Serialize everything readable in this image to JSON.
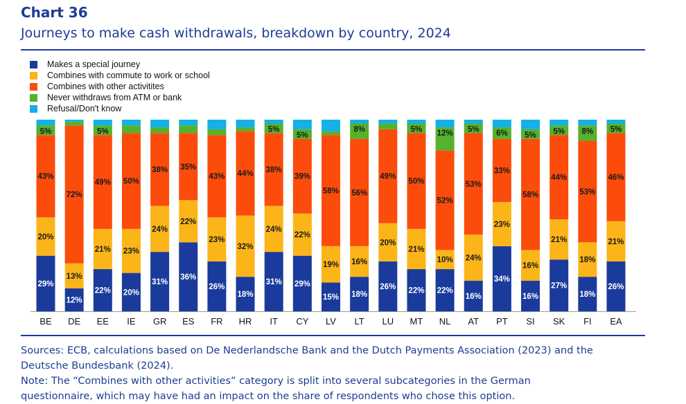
{
  "header": {
    "chart_number": "Chart 36",
    "title": "Journeys to make cash withdrawals, breakdown by country, 2024"
  },
  "colors": {
    "accent": "#1c3c94",
    "special": "#1a3b9c",
    "commute": "#fbb519",
    "other": "#fb4c0c",
    "never": "#54b22d",
    "refusal": "#14b0e6"
  },
  "chart_data": {
    "type": "bar",
    "stacked": true,
    "normalized_percent": true,
    "categories": [
      "BE",
      "DE",
      "EE",
      "IE",
      "GR",
      "ES",
      "FR",
      "HR",
      "IT",
      "CY",
      "LV",
      "LT",
      "LU",
      "MT",
      "NL",
      "AT",
      "PT",
      "SI",
      "SK",
      "FI",
      "EA"
    ],
    "series": [
      {
        "name": "Makes a special journey",
        "color": "#1a3b9c",
        "values": [
          29,
          12,
          22,
          20,
          31,
          36,
          26,
          18,
          31,
          29,
          15,
          18,
          26,
          22,
          22,
          16,
          34,
          16,
          27,
          18,
          26
        ],
        "labels": [
          "29%",
          "12%",
          "22%",
          "20%",
          "31%",
          "36%",
          "26%",
          "18%",
          "31%",
          "29%",
          "15%",
          "18%",
          "26%",
          "22%",
          "22%",
          "16%",
          "34%",
          "16%",
          "27%",
          "18%",
          "26%"
        ]
      },
      {
        "name": "Combines with commute to work or school",
        "color": "#fbb519",
        "values": [
          20,
          13,
          21,
          23,
          24,
          22,
          23,
          32,
          24,
          22,
          19,
          16,
          20,
          21,
          10,
          24,
          23,
          16,
          21,
          18,
          21
        ],
        "labels": [
          "20%",
          "13%",
          "21%",
          "23%",
          "24%",
          "22%",
          "23%",
          "32%",
          "24%",
          "22%",
          "19%",
          "16%",
          "20%",
          "21%",
          "10%",
          "24%",
          "23%",
          "16%",
          "21%",
          "18%",
          "21%"
        ]
      },
      {
        "name": "Combines with other activitites",
        "color": "#fb4c0c",
        "values": [
          43,
          72,
          49,
          50,
          38,
          35,
          43,
          44,
          38,
          39,
          58,
          56,
          49,
          50,
          52,
          53,
          33,
          58,
          44,
          53,
          46
        ],
        "labels": [
          "43%",
          "72%",
          "49%",
          "50%",
          "38%",
          "35%",
          "43%",
          "44%",
          "38%",
          "39%",
          "58%",
          "56%",
          "49%",
          "50%",
          "52%",
          "53%",
          "33%",
          "58%",
          "44%",
          "53%",
          "46%"
        ]
      },
      {
        "name": "Never withdraws from ATM or bank",
        "color": "#54b22d",
        "values": [
          5,
          2,
          5,
          4,
          3,
          4,
          3,
          2,
          5,
          5,
          2,
          8,
          3,
          5,
          12,
          5,
          6,
          5,
          5,
          8,
          5
        ],
        "labels": [
          "5%",
          "",
          "5%",
          "",
          "",
          "",
          "",
          "",
          "5%",
          "5%",
          "",
          "8%",
          "",
          "5%",
          "12%",
          "5%",
          "6%",
          "5%",
          "5%",
          "8%",
          "5%"
        ]
      },
      {
        "name": "Refusal/Don't know",
        "color": "#14b0e6",
        "values": [
          3,
          1,
          3,
          3,
          4,
          3,
          5,
          4,
          2,
          5,
          6,
          2,
          2,
          2,
          4,
          2,
          4,
          5,
          3,
          3,
          2
        ],
        "labels": [
          "",
          "",
          "",
          "",
          "",
          "",
          "",
          "",
          "",
          "",
          "",
          "",
          "",
          "",
          "",
          "",
          "",
          "",
          "",
          "",
          ""
        ]
      }
    ],
    "ylim": [
      0,
      100
    ],
    "legend_position": "top-left",
    "grid": false
  },
  "footer": {
    "sources_line1": "Sources: ECB, calculations based on De Nederlandsche Bank and the Dutch Payments Association (2023) and the",
    "sources_line2": "Deutsche Bundesbank (2024).",
    "note_line1": "Note: The “Combines with other activities” category is split into several subcategories in the German",
    "note_line2": "questionnaire, which may have had an impact on the share of respondents who chose this option."
  }
}
